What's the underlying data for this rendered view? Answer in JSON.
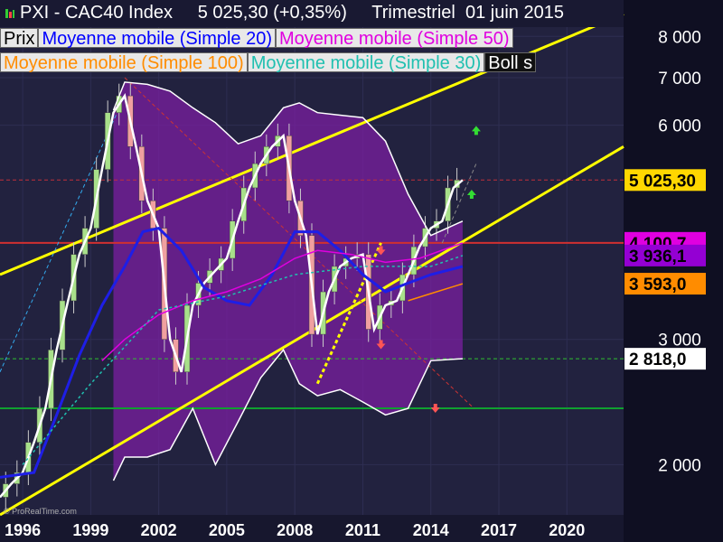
{
  "header": {
    "title": "PXI - CAC40 Index     5 025,30 (+0,35%)     Trimestriel  01 juin 2015"
  },
  "legend": [
    {
      "label": "Prix",
      "color": "#000000"
    },
    {
      "label": "Moyenne mobile (Simple 20)",
      "color": "#0000ff"
    },
    {
      "label": "Moyenne mobile (Simple 50)",
      "color": "#e000e0"
    },
    {
      "label": "Moyenne mobile (Simple 100)",
      "color": "#ff8c00"
    },
    {
      "label": "Moyenne mobile (Simple 30)",
      "color": "#20c0b0"
    },
    {
      "label": "Boll s",
      "color": "#ffffff"
    }
  ],
  "watermark": "© ProRealTime.com",
  "chart_data": {
    "type": "line",
    "y_scale": "log",
    "ylim": [
      1700,
      9000
    ],
    "xlim": [
      1995,
      2022.5
    ],
    "x_ticks": [
      "1996",
      "1999",
      "2002",
      "2005",
      "2008",
      "2011",
      "2014",
      "2017",
      "2020"
    ],
    "y_ticks": [
      {
        "value": 2000,
        "label": "2 000"
      },
      {
        "value": 3000,
        "label": "3 000"
      },
      {
        "value": 6000,
        "label": "6 000"
      },
      {
        "value": 7000,
        "label": "7 000"
      },
      {
        "value": 8000,
        "label": "8 000"
      }
    ],
    "price_labels": [
      {
        "value": 5025.3,
        "label": "5 025,30",
        "bg": "#ffd700",
        "fg": "#000000"
      },
      {
        "value": 4100.7,
        "label": "4 100,7",
        "bg": "#e000e0",
        "fg": "#000000"
      },
      {
        "value": 3936.1,
        "label": "3 936,1",
        "bg": "#9400d3",
        "fg": "#000000"
      },
      {
        "value": 3593.0,
        "label": "3 593,0",
        "bg": "#ff8c00",
        "fg": "#000000"
      },
      {
        "value": 2818.0,
        "label": "2 818,0",
        "bg": "#ffffff",
        "fg": "#000000"
      }
    ],
    "series": [
      {
        "name": "Prix",
        "color": "#ffffff",
        "x": [
          1995.0,
          1995.5,
          1996.0,
          1996.5,
          1997.0,
          1997.5,
          1998.0,
          1998.5,
          1999.0,
          1999.5,
          2000.0,
          2000.5,
          2001.0,
          2001.5,
          2002.0,
          2002.5,
          2003.0,
          2003.5,
          2004.0,
          2004.5,
          2005.0,
          2005.5,
          2006.0,
          2006.5,
          2007.0,
          2007.5,
          2008.0,
          2008.5,
          2009.0,
          2009.5,
          2010.0,
          2010.5,
          2011.0,
          2011.5,
          2012.0,
          2012.5,
          2013.0,
          2013.5,
          2014.0,
          2014.5,
          2015.0,
          2015.4
        ],
        "y": [
          1800,
          1880,
          1950,
          2150,
          2400,
          2900,
          3400,
          3950,
          4300,
          5200,
          6250,
          6600,
          5600,
          4700,
          4300,
          3000,
          2700,
          3350,
          3600,
          3750,
          3900,
          4400,
          4900,
          5300,
          5600,
          5800,
          4700,
          4200,
          3050,
          3500,
          3800,
          3900,
          3950,
          3100,
          3350,
          3400,
          3700,
          4050,
          4300,
          4400,
          4900,
          5025
        ]
      },
      {
        "name": "Moyenne mobile (Simple 20)",
        "color": "#1e1ee6",
        "x": [
          1995.0,
          1996.5,
          1997.5,
          1998.5,
          1999.5,
          2000.5,
          2001.3,
          2002.0,
          2003.0,
          2004.0,
          2005.0,
          2006.0,
          2007.0,
          2008.0,
          2009.0,
          2010.0,
          2011.0,
          2012.0,
          2013.0,
          2014.0,
          2015.4
        ],
        "y": [
          1920,
          1950,
          2350,
          2850,
          3350,
          3800,
          4250,
          4300,
          4000,
          3550,
          3400,
          3350,
          3700,
          4250,
          4250,
          4000,
          3700,
          3500,
          3600,
          3700,
          3800
        ]
      },
      {
        "name": "Moyenne mobile (Simple 50)",
        "color": "#e000e0",
        "x": [
          1999.5,
          2000.5,
          2002.0,
          2003.5,
          2005.0,
          2006.5,
          2008.0,
          2009.0,
          2010.5,
          2012.0,
          2013.5,
          2015.4
        ],
        "y": [
          2800,
          3000,
          3250,
          3400,
          3500,
          3650,
          3900,
          4000,
          3950,
          3850,
          3900,
          4100
        ]
      },
      {
        "name": "Moyenne mobile (Simple 100)",
        "color": "#ff8c00",
        "x": [
          2013.0,
          2014.0,
          2015.4
        ],
        "y": [
          3400,
          3480,
          3593
        ]
      },
      {
        "name": "Moyenne mobile (Simple 30)",
        "color": "#20c0b0",
        "x": [
          1996.0,
          1999.0,
          2002.0,
          2005.0,
          2008.0,
          2011.0,
          2014.0,
          2015.4
        ],
        "y": [
          2000,
          2600,
          3300,
          3450,
          3700,
          3800,
          3800,
          3936
        ]
      },
      {
        "name": "Boll upper",
        "color": "#ffffff",
        "x": [
          2000.0,
          2000.5,
          2001.5,
          2002.5,
          2003.5,
          2004.5,
          2005.5,
          2006.5,
          2007.5,
          2008.2,
          2009.0,
          2010.0,
          2011.0,
          2012.0,
          2013.0,
          2014.0,
          2015.4
        ],
        "y": [
          6300,
          6900,
          6850,
          6700,
          6350,
          6050,
          5650,
          5800,
          6350,
          6450,
          6250,
          6200,
          6150,
          5700,
          4800,
          4200,
          4400
        ]
      },
      {
        "name": "Boll lower",
        "color": "#ffffff",
        "x": [
          2000.0,
          2000.5,
          2001.5,
          2002.5,
          2003.5,
          2004.5,
          2005.5,
          2006.5,
          2007.5,
          2008.2,
          2009.0,
          2010.0,
          2011.0,
          2012.0,
          2013.0,
          2014.0,
          2015.4
        ],
        "y": [
          1900,
          2050,
          2050,
          2100,
          2400,
          2000,
          2300,
          2650,
          2900,
          2600,
          2500,
          2550,
          2450,
          2350,
          2400,
          2800,
          2818
        ]
      }
    ],
    "horizontal_lines": [
      {
        "value": 5025.3,
        "color": "#c0303a",
        "style": "dashed"
      },
      {
        "value": 4100.7,
        "color": "#d03030",
        "style": "solid"
      },
      {
        "value": 2818.0,
        "color": "#30c030",
        "style": "dashed"
      },
      {
        "value": 2400,
        "color": "#10a030",
        "style": "solid"
      }
    ],
    "trend_lines": [
      {
        "color": "#ffff00",
        "points": [
          [
            1995.0,
            3700
          ],
          [
            2022.5,
            8600
          ]
        ]
      },
      {
        "color": "#ffff00",
        "points": [
          [
            1995.0,
            1700
          ],
          [
            2022.5,
            5600
          ]
        ]
      },
      {
        "color": "#cc3333",
        "points": [
          [
            2000.5,
            7000
          ],
          [
            2015.9,
            2400
          ]
        ]
      },
      {
        "color": "#33aaee",
        "points": [
          [
            1995.0,
            2700
          ],
          [
            2000.5,
            6600
          ]
        ]
      },
      {
        "color": "#ffff00",
        "points": [
          [
            2009.0,
            2600
          ],
          [
            2011.8,
            4100
          ]
        ]
      },
      {
        "color": "#888888",
        "points": [
          [
            2014.5,
            4100
          ],
          [
            2016.0,
            5300
          ]
        ]
      }
    ],
    "signal_arrows": [
      {
        "x": 2016.0,
        "y": 5900,
        "dir": "up",
        "color": "#33dd33"
      },
      {
        "x": 2015.8,
        "y": 4800,
        "dir": "up",
        "color": "#33dd33"
      },
      {
        "x": 2011.8,
        "y": 4000,
        "dir": "down",
        "color": "#ff5555"
      },
      {
        "x": 2011.8,
        "y": 2950,
        "dir": "down",
        "color": "#ff5555"
      },
      {
        "x": 2014.2,
        "y": 2400,
        "dir": "down",
        "color": "#ff5555"
      }
    ],
    "grid": true,
    "legend_position": "top-left"
  }
}
